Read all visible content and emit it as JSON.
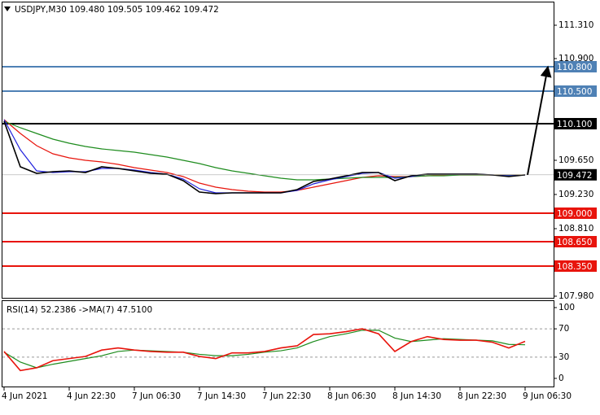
{
  "chart_data": [
    {
      "type": "line",
      "title": "USDJPY,M30  109.480 109.505 109.462 109.472",
      "ylim": [
        107.96,
        111.59
      ],
      "yticks": [
        {
          "value": 111.31,
          "label": "111.310"
        },
        {
          "value": 110.9,
          "label": "110.900"
        },
        {
          "value": 109.65,
          "label": "109.650"
        },
        {
          "value": 109.23,
          "label": "109.230"
        },
        {
          "value": 108.81,
          "label": "108.810"
        },
        {
          "value": 107.98,
          "label": "107.980"
        }
      ],
      "levels": [
        {
          "value": 110.8,
          "label": "110.800",
          "color": "#4f81b5"
        },
        {
          "value": 110.5,
          "label": "110.500",
          "color": "#4f81b5"
        },
        {
          "value": 110.1,
          "label": "110.100",
          "color": "#000000"
        },
        {
          "value": 109.0,
          "label": "109.000",
          "color": "#e8140c"
        },
        {
          "value": 108.65,
          "label": "108.650",
          "color": "#e8140c"
        },
        {
          "value": 108.35,
          "label": "108.350",
          "color": "#e8140c"
        }
      ],
      "series": [
        {
          "color": "#e8140c",
          "values": [
            110.15,
            109.98,
            109.83,
            109.73,
            109.68,
            109.65,
            109.63,
            109.6,
            109.56,
            109.53,
            109.5,
            109.45,
            109.37,
            109.32,
            109.29,
            109.27,
            109.26,
            109.26,
            109.28,
            109.32,
            109.36,
            109.4,
            109.44,
            109.46,
            109.45,
            109.45,
            109.46,
            109.47,
            109.47,
            109.47,
            109.47,
            109.47,
            109.47
          ]
        },
        {
          "color": "#1e8c1e",
          "values": [
            110.13,
            110.05,
            109.98,
            109.91,
            109.86,
            109.82,
            109.79,
            109.77,
            109.75,
            109.72,
            109.69,
            109.65,
            109.61,
            109.56,
            109.52,
            109.49,
            109.46,
            109.43,
            109.41,
            109.41,
            109.42,
            109.43,
            109.44,
            109.44,
            109.44,
            109.45,
            109.46,
            109.46,
            109.47,
            109.47,
            109.47,
            109.47,
            109.47
          ]
        },
        {
          "color": "#2222dd",
          "values": [
            110.15,
            109.78,
            109.52,
            109.5,
            109.51,
            109.51,
            109.55,
            109.55,
            109.53,
            109.5,
            109.48,
            109.42,
            109.3,
            109.25,
            109.25,
            109.25,
            109.25,
            109.25,
            109.28,
            109.36,
            109.41,
            109.45,
            109.49,
            109.5,
            109.43,
            109.45,
            109.48,
            109.48,
            109.48,
            109.48,
            109.47,
            109.46,
            109.47
          ]
        },
        {
          "color": "#000000",
          "values": [
            110.13,
            109.57,
            109.49,
            109.51,
            109.52,
            109.5,
            109.57,
            109.55,
            109.52,
            109.49,
            109.48,
            109.4,
            109.26,
            109.24,
            109.25,
            109.25,
            109.25,
            109.25,
            109.29,
            109.39,
            109.42,
            109.46,
            109.5,
            109.5,
            109.4,
            109.46,
            109.48,
            109.48,
            109.48,
            109.48,
            109.47,
            109.45,
            109.472
          ]
        }
      ]
    },
    {
      "type": "line",
      "title": "RSI(14) 52.2386  ->MA(7) 47.5100",
      "categories": [
        "4 Jun 2021",
        null,
        null,
        null,
        "4 Jun 22:30",
        null,
        null,
        null,
        "7 Jun 06:30",
        null,
        null,
        null,
        "7 Jun 14:30",
        null,
        null,
        null,
        "7 Jun 22:30",
        null,
        null,
        null,
        "8 Jun 06:30",
        null,
        null,
        null,
        "8 Jun 14:30",
        null,
        null,
        null,
        "8 Jun 22:30",
        null,
        null,
        null,
        "9 Jun 06:30"
      ],
      "ylim": [
        -11.5,
        109.2
      ],
      "yticks": [
        100,
        70,
        30,
        0
      ],
      "levels": [
        70,
        30
      ],
      "series": [
        {
          "color": "#1e8c1e",
          "values": [
            37,
            23,
            15,
            20,
            24,
            28,
            32,
            38,
            40,
            39,
            38,
            37,
            34,
            32,
            32,
            34,
            37,
            39,
            43,
            52,
            59,
            63,
            68,
            68,
            57,
            52,
            54,
            56,
            55,
            54,
            53,
            48,
            47.51
          ]
        },
        {
          "color": "#e8140c",
          "values": [
            38,
            11,
            15,
            25,
            28,
            31,
            40,
            43,
            40,
            38,
            37,
            37,
            31,
            28,
            36,
            36,
            38,
            43,
            46,
            62,
            63,
            66,
            70,
            63,
            38,
            52,
            59,
            55,
            54,
            54,
            51,
            43,
            52.2386
          ]
        }
      ]
    }
  ]
}
